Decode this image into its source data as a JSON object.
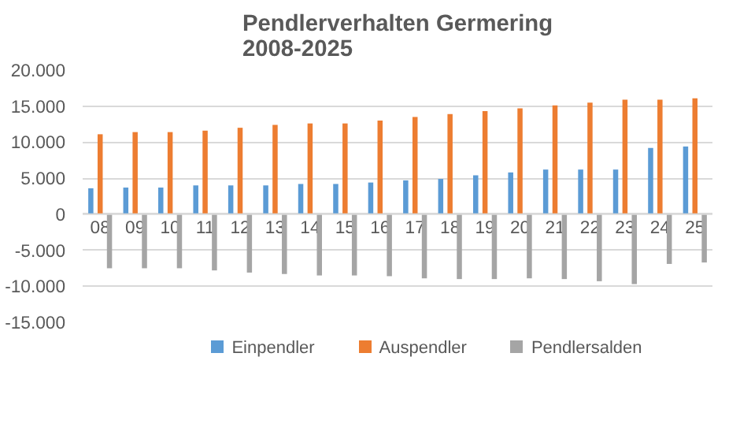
{
  "chart_data": {
    "type": "bar",
    "title": "Pendlerverhalten Germering\n2008-2025",
    "categories": [
      "08",
      "09",
      "10",
      "11",
      "12",
      "13",
      "14",
      "15",
      "16",
      "17",
      "18",
      "19",
      "20",
      "21",
      "22",
      "23",
      "24",
      "25"
    ],
    "series": [
      {
        "name": "Einpendler",
        "color": "#5b9bd5",
        "values": [
          3600,
          3700,
          3700,
          4000,
          4000,
          4000,
          4200,
          4200,
          4400,
          4700,
          4900,
          5400,
          5800,
          6200,
          6200,
          6200,
          9200,
          9400
        ]
      },
      {
        "name": "Auspendler",
        "color": "#ed7d31",
        "values": [
          11100,
          11400,
          11400,
          11600,
          12000,
          12400,
          12600,
          12600,
          13000,
          13500,
          13900,
          14300,
          14700,
          15100,
          15500,
          15900,
          15900,
          16100
        ]
      },
      {
        "name": "Pendlersalden",
        "color": "#a5a5a5",
        "values": [
          -7500,
          -7500,
          -7500,
          -7800,
          -8100,
          -8300,
          -8500,
          -8500,
          -8600,
          -8900,
          -9000,
          -9000,
          -8900,
          -9000,
          -9300,
          -9700,
          -6900,
          -6700
        ]
      }
    ],
    "ylim": [
      -15000,
      20000
    ],
    "yticks": [
      {
        "value": -15000,
        "label": "-15.000"
      },
      {
        "value": -10000,
        "label": "-10.000"
      },
      {
        "value": -5000,
        "label": "-5.000"
      },
      {
        "value": 0,
        "label": "0"
      },
      {
        "value": 5000,
        "label": "5.000"
      },
      {
        "value": 10000,
        "label": "10.000"
      },
      {
        "value": 15000,
        "label": "15.000"
      },
      {
        "value": 20000,
        "label": "20.000"
      }
    ],
    "grid": "y",
    "legend": "bottom"
  }
}
